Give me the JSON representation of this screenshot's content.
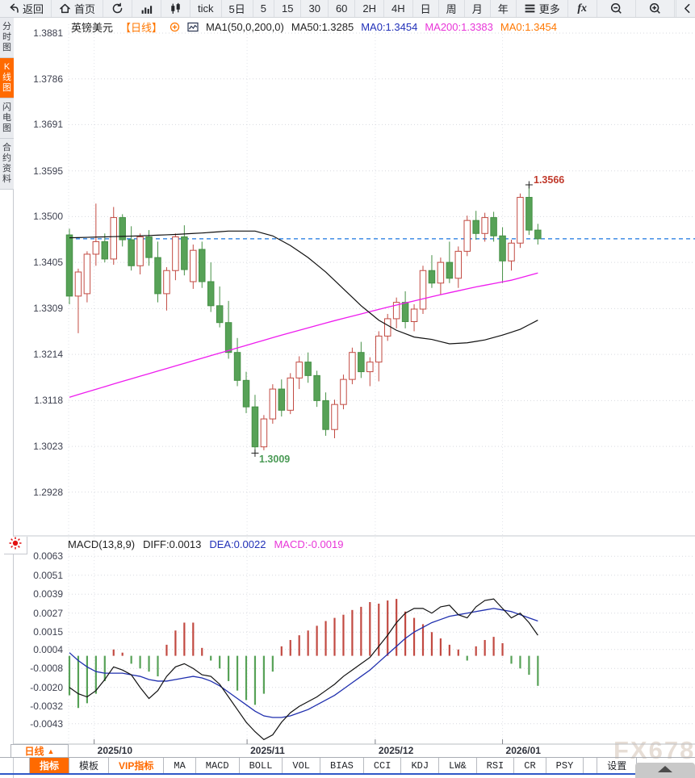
{
  "toolbar": {
    "items": [
      {
        "name": "back-button",
        "label": "返回",
        "icon": "back"
      },
      {
        "name": "home-button",
        "label": "首页",
        "icon": "home"
      },
      {
        "name": "refresh-button",
        "icon": "refresh"
      },
      {
        "name": "chart-style-bar-button",
        "icon": "bar-chart"
      },
      {
        "name": "chart-style-candle-button",
        "icon": "candle-chart"
      },
      {
        "name": "interval-tick-button",
        "label": "tick"
      },
      {
        "name": "interval-5d-button",
        "label": "5日"
      },
      {
        "name": "interval-5m-button",
        "label": "5"
      },
      {
        "name": "interval-15m-button",
        "label": "15"
      },
      {
        "name": "interval-30m-button",
        "label": "30"
      },
      {
        "name": "interval-60m-button",
        "label": "60"
      },
      {
        "name": "interval-2h-button",
        "label": "2H"
      },
      {
        "name": "interval-4h-button",
        "label": "4H"
      },
      {
        "name": "interval-day-button",
        "label": "日"
      },
      {
        "name": "interval-week-button",
        "label": "周"
      },
      {
        "name": "interval-month-button",
        "label": "月"
      },
      {
        "name": "interval-year-button",
        "label": "年"
      },
      {
        "name": "more-button",
        "label": "更多",
        "icon": "menu"
      },
      {
        "name": "fx-button",
        "icon": "fx"
      },
      {
        "name": "zoom-out-button",
        "icon": "zoom-out",
        "wide": true
      },
      {
        "name": "zoom-in-button",
        "icon": "zoom-in",
        "wide": true
      },
      {
        "name": "collapse-button",
        "icon": "collapse",
        "last": true
      }
    ]
  },
  "sidebar": {
    "tabs": [
      {
        "label": "分时图",
        "active": false
      },
      {
        "label": "K线图",
        "active": true
      },
      {
        "label": "闪电图",
        "active": false
      },
      {
        "label": "合约资料",
        "active": false
      }
    ]
  },
  "chart_header": {
    "symbol": "英镑美元",
    "period": "【日线】",
    "ma_settings": "MA1(50,0,200,0)",
    "ma50": "MA50:1.3285",
    "ma0_fast": "MA0:1.3454",
    "ma200": "MA200:1.3383",
    "ma0_slow": "MA0:1.3454"
  },
  "macd_header": {
    "title": "MACD(13,8,9)",
    "diff": "DIFF:0.0013",
    "dea": "DEA:0.0022",
    "macd": "MACD:-0.0019"
  },
  "price_axis": {
    "labels": [
      "1.3881",
      "1.3786",
      "1.3691",
      "1.3595",
      "1.3500",
      "1.3405",
      "1.3309",
      "1.3214",
      "1.3118",
      "1.3023",
      "1.2928"
    ]
  },
  "macd_axis": {
    "labels": [
      "0.0063",
      "0.0051",
      "0.0039",
      "0.0027",
      "0.0015",
      "0.0004",
      "-0.0008",
      "-0.0020",
      "-0.0032",
      "-0.0043"
    ]
  },
  "x_axis": {
    "ticks": [
      {
        "label": "2025/10",
        "index": 2.8
      },
      {
        "label": "2025/11",
        "index": 20.1
      },
      {
        "label": "2025/12",
        "index": 34.6
      },
      {
        "label": "2026/01",
        "index": 49
      }
    ]
  },
  "annotations": {
    "high": "1.3566",
    "low": "1.3009"
  },
  "period_box": {
    "label": "日线",
    "arrow": "▲"
  },
  "indicator_bar": {
    "cells": [
      {
        "label": "指标",
        "style": "active"
      },
      {
        "label": "模板"
      },
      {
        "label": "VIP指标",
        "style": "vip"
      },
      {
        "label": "MA",
        "mono": true
      },
      {
        "label": "MACD",
        "mono": true
      },
      {
        "label": "BOLL",
        "mono": true
      },
      {
        "label": "VOL",
        "mono": true
      },
      {
        "label": "BIAS",
        "mono": true
      },
      {
        "label": "CCI",
        "mono": true
      },
      {
        "label": "KDJ",
        "mono": true
      },
      {
        "label": "LW&",
        "mono": true
      },
      {
        "label": "RSI",
        "mono": true
      },
      {
        "label": "CR",
        "mono": true
      },
      {
        "label": "PSY",
        "mono": true
      },
      {
        "label": "设置",
        "style": "gap"
      }
    ]
  },
  "watermark": "FX678",
  "colors": {
    "up": "#c24a42",
    "down_fill": "#57a257",
    "down_stroke": "#459045",
    "ma50": "#111111",
    "ma200": "#ee1cee",
    "diff": "#111111",
    "dea": "#1f2fae",
    "current_price_line": "#1876e0",
    "accent": "#ff6a00",
    "annotation_high": "#c0392b",
    "annotation_low": "#4a9a55",
    "grid": "#d7d9df",
    "vgrid": "#e2e4ea"
  },
  "chart_data": {
    "type": "candlestick",
    "title": "英镑美元 日线 (GBP/USD daily)",
    "price_max": 1.3881,
    "price_min": 1.2928,
    "current_price": 1.3454,
    "high_marker": {
      "index": 52,
      "price": 1.3566
    },
    "low_marker": {
      "index": 21,
      "price": 1.3009
    },
    "candles": [
      [
        1.3462,
        1.3475,
        1.3318,
        1.3335
      ],
      [
        1.3335,
        1.3392,
        1.3258,
        1.3385
      ],
      [
        1.334,
        1.3428,
        1.3322,
        1.3422
      ],
      [
        1.3422,
        1.3527,
        1.3398,
        1.3448
      ],
      [
        1.3448,
        1.3465,
        1.3405,
        1.3412
      ],
      [
        1.3412,
        1.352,
        1.34,
        1.3498
      ],
      [
        1.3498,
        1.3505,
        1.3438,
        1.3452
      ],
      [
        1.3452,
        1.348,
        1.3388,
        1.3398
      ],
      [
        1.3398,
        1.3465,
        1.338,
        1.3458
      ],
      [
        1.3458,
        1.3472,
        1.3398,
        1.3415
      ],
      [
        1.3415,
        1.3448,
        1.3322,
        1.334
      ],
      [
        1.334,
        1.3395,
        1.3305,
        1.3388
      ],
      [
        1.3388,
        1.3465,
        1.3368,
        1.3458
      ],
      [
        1.3458,
        1.3482,
        1.3378,
        1.339
      ],
      [
        1.3365,
        1.3442,
        1.335,
        1.343
      ],
      [
        1.3432,
        1.3448,
        1.3352,
        1.3365
      ],
      [
        1.3365,
        1.3405,
        1.3302,
        1.3315
      ],
      [
        1.3315,
        1.3355,
        1.327,
        1.328
      ],
      [
        1.328,
        1.3325,
        1.3205,
        1.3218
      ],
      [
        1.3218,
        1.3248,
        1.3148,
        1.316
      ],
      [
        1.316,
        1.3178,
        1.3092,
        1.3105
      ],
      [
        1.3105,
        1.313,
        1.3009,
        1.3022
      ],
      [
        1.3022,
        1.3088,
        1.3015,
        1.308
      ],
      [
        1.308,
        1.3152,
        1.307,
        1.3142
      ],
      [
        1.3142,
        1.3162,
        1.3085,
        1.3098
      ],
      [
        1.3098,
        1.3175,
        1.309,
        1.3165
      ],
      [
        1.3165,
        1.321,
        1.3142,
        1.3198
      ],
      [
        1.3198,
        1.3218,
        1.3155,
        1.317
      ],
      [
        1.317,
        1.318,
        1.3105,
        1.3118
      ],
      [
        1.3118,
        1.3135,
        1.3045,
        1.3058
      ],
      [
        1.3058,
        1.312,
        1.304,
        1.311
      ],
      [
        1.311,
        1.3172,
        1.31,
        1.3162
      ],
      [
        1.3162,
        1.3228,
        1.3152,
        1.3218
      ],
      [
        1.3218,
        1.324,
        1.3165,
        1.3178
      ],
      [
        1.3178,
        1.3208,
        1.3148,
        1.3198
      ],
      [
        1.3198,
        1.3262,
        1.3158,
        1.3252
      ],
      [
        1.3252,
        1.3298,
        1.3242,
        1.3288
      ],
      [
        1.3288,
        1.3332,
        1.3268,
        1.3322
      ],
      [
        1.3322,
        1.3345,
        1.3268,
        1.3282
      ],
      [
        1.3282,
        1.3318,
        1.3262,
        1.3308
      ],
      [
        1.3308,
        1.3398,
        1.3298,
        1.3388
      ],
      [
        1.3388,
        1.342,
        1.3352,
        1.3362
      ],
      [
        1.3362,
        1.3415,
        1.3338,
        1.3405
      ],
      [
        1.3405,
        1.3448,
        1.3362,
        1.3372
      ],
      [
        1.3372,
        1.3438,
        1.3352,
        1.3428
      ],
      [
        1.3428,
        1.3502,
        1.3418,
        1.3492
      ],
      [
        1.3492,
        1.3512,
        1.3452,
        1.3465
      ],
      [
        1.3465,
        1.3508,
        1.3448,
        1.3498
      ],
      [
        1.3498,
        1.351,
        1.3448,
        1.346
      ],
      [
        1.346,
        1.3478,
        1.3362,
        1.3408
      ],
      [
        1.3408,
        1.3452,
        1.3388,
        1.3445
      ],
      [
        1.3445,
        1.3548,
        1.3435,
        1.354
      ],
      [
        1.354,
        1.3566,
        1.3462,
        1.3472
      ],
      [
        1.3472,
        1.3485,
        1.3442,
        1.3454
      ]
    ],
    "ma50_anchors": [
      [
        0,
        1.3456
      ],
      [
        4,
        1.3458
      ],
      [
        8,
        1.346
      ],
      [
        12,
        1.3463
      ],
      [
        15,
        1.3466
      ],
      [
        18,
        1.347
      ],
      [
        21,
        1.347
      ],
      [
        23,
        1.346
      ],
      [
        25,
        1.344
      ],
      [
        27,
        1.3415
      ],
      [
        29,
        1.3385
      ],
      [
        31,
        1.335
      ],
      [
        33,
        1.3315
      ],
      [
        35,
        1.3285
      ],
      [
        37,
        1.3264
      ],
      [
        39,
        1.325
      ],
      [
        41,
        1.3245
      ],
      [
        43,
        1.3236
      ],
      [
        45,
        1.3238
      ],
      [
        47,
        1.3244
      ],
      [
        49,
        1.3254
      ],
      [
        51,
        1.3266
      ],
      [
        53,
        1.3285
      ]
    ],
    "ma200_anchors": [
      [
        0,
        1.3125
      ],
      [
        6,
        1.3158
      ],
      [
        12,
        1.319
      ],
      [
        18,
        1.3222
      ],
      [
        24,
        1.3254
      ],
      [
        30,
        1.3284
      ],
      [
        36,
        1.3312
      ],
      [
        42,
        1.3338
      ],
      [
        46,
        1.3354
      ],
      [
        50,
        1.3368
      ],
      [
        53,
        1.3383
      ]
    ],
    "macd": {
      "params": "13,8,9",
      "axis_max": 0.0063,
      "axis_min": -0.0043,
      "hist": [
        -0.0025,
        -0.0033,
        -0.003,
        -0.0024,
        -0.0016,
        0.0004,
        0.0002,
        -0.0005,
        -0.0008,
        -0.001,
        -0.0013,
        0.0007,
        0.0016,
        0.0021,
        0.0021,
        0.0005,
        -0.0003,
        -0.0008,
        -0.0016,
        -0.0022,
        -0.0028,
        -0.0031,
        -0.0024,
        -0.001,
        0.0006,
        0.001,
        0.0013,
        0.0016,
        0.0019,
        0.0022,
        0.0024,
        0.0026,
        0.0029,
        0.0031,
        0.0034,
        0.0033,
        0.0035,
        0.0036,
        0.0028,
        0.0024,
        0.002,
        0.0015,
        0.0011,
        0.0007,
        0.0004,
        -0.0003,
        0.0006,
        0.001,
        0.0012,
        0.0008,
        -0.0005,
        -0.0008,
        -0.0012,
        -0.0019
      ],
      "diff": [
        -0.002,
        -0.0024,
        -0.0026,
        -0.0022,
        -0.0015,
        -0.0007,
        -0.0009,
        -0.0012,
        -0.002,
        -0.0027,
        -0.0022,
        -0.0013,
        -0.0007,
        -0.0005,
        -0.0008,
        -0.0012,
        -0.0013,
        -0.0018,
        -0.0026,
        -0.0034,
        -0.0042,
        -0.0048,
        -0.0053,
        -0.005,
        -0.0042,
        -0.0036,
        -0.0032,
        -0.0029,
        -0.0026,
        -0.0022,
        -0.0018,
        -0.0013,
        -0.0009,
        -0.0005,
        -0.0001,
        0.0006,
        0.0013,
        0.0021,
        0.0027,
        0.003,
        0.003,
        0.0027,
        0.0031,
        0.0032,
        0.0026,
        0.0024,
        0.0031,
        0.0035,
        0.0036,
        0.003,
        0.0024,
        0.0027,
        0.0021,
        0.0013
      ],
      "dea": [
        0.0002,
        -0.0003,
        -0.0007,
        -0.001,
        -0.0011,
        -0.0011,
        -0.0011,
        -0.0012,
        -0.0013,
        -0.0015,
        -0.0016,
        -0.0016,
        -0.0015,
        -0.0014,
        -0.0013,
        -0.0014,
        -0.0016,
        -0.0019,
        -0.0023,
        -0.0027,
        -0.0031,
        -0.0035,
        -0.0038,
        -0.0039,
        -0.0039,
        -0.0038,
        -0.0036,
        -0.0034,
        -0.0031,
        -0.0028,
        -0.0025,
        -0.0021,
        -0.0017,
        -0.0013,
        -0.0009,
        -0.0004,
        0.0001,
        0.0006,
        0.0011,
        0.0015,
        0.0018,
        0.0021,
        0.0023,
        0.0025,
        0.0026,
        0.0027,
        0.0028,
        0.0029,
        0.003,
        0.0029,
        0.0028,
        0.0026,
        0.0024,
        0.0022
      ]
    }
  }
}
